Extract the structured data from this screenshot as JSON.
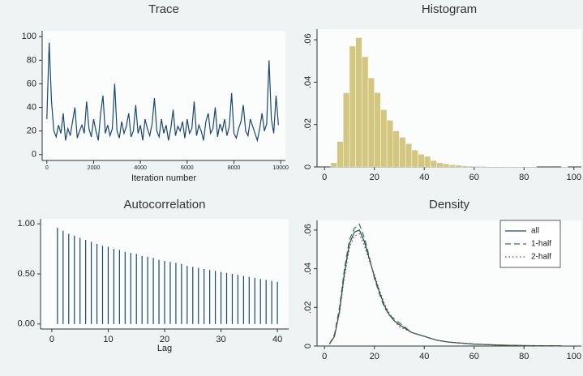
{
  "chart_data": [
    {
      "type": "line",
      "title": "Trace",
      "xlabel": "Iteration number",
      "x": [
        0,
        100,
        200,
        300,
        400,
        500,
        600,
        700,
        800,
        900,
        1000,
        1100,
        1200,
        1300,
        1400,
        1500,
        1600,
        1700,
        1800,
        1900,
        2000,
        2100,
        2200,
        2300,
        2400,
        2500,
        2600,
        2700,
        2800,
        2900,
        3000,
        3100,
        3200,
        3300,
        3400,
        3500,
        3600,
        3700,
        3800,
        3900,
        4000,
        4100,
        4200,
        4300,
        4400,
        4500,
        4600,
        4700,
        4800,
        4900,
        5000,
        5100,
        5200,
        5300,
        5400,
        5500,
        5600,
        5700,
        5800,
        5900,
        6000,
        6100,
        6200,
        6300,
        6400,
        6500,
        6600,
        6700,
        6800,
        6900,
        7000,
        7100,
        7200,
        7300,
        7400,
        7500,
        7600,
        7700,
        7800,
        7900,
        8000,
        8100,
        8200,
        8300,
        8400,
        8500,
        8600,
        8700,
        8800,
        8900,
        9000,
        9100,
        9200,
        9300,
        9400,
        9500,
        9600,
        9700,
        9800,
        9900
      ],
      "values": [
        30,
        95,
        45,
        20,
        15,
        25,
        18,
        35,
        12,
        22,
        16,
        28,
        40,
        14,
        20,
        25,
        18,
        45,
        22,
        15,
        30,
        20,
        12,
        35,
        50,
        18,
        25,
        16,
        22,
        60,
        20,
        14,
        28,
        18,
        24,
        35,
        15,
        20,
        42,
        18,
        25,
        12,
        30,
        22,
        16,
        26,
        48,
        20,
        15,
        30,
        18,
        25,
        12,
        22,
        38,
        16,
        24,
        20,
        28,
        14,
        30,
        18,
        22,
        45,
        16,
        25,
        20,
        12,
        28,
        35,
        18,
        22,
        40,
        15,
        26,
        20,
        30,
        16,
        24,
        52,
        18,
        14,
        22,
        28,
        42,
        20,
        16,
        30,
        24,
        18,
        12,
        22,
        35,
        20,
        26,
        80,
        30,
        18,
        50,
        25
      ],
      "color": "#1a476f",
      "xlim": [
        -200,
        10200
      ],
      "ylim": [
        -5,
        105
      ],
      "xticks": [
        0,
        2000,
        4000,
        6000,
        8000,
        10000
      ],
      "yticks": [
        0,
        20,
        40,
        60,
        80,
        100
      ],
      "ytick_rotation": 0,
      "xtick_size": "small"
    },
    {
      "type": "histogram",
      "title": "Histogram",
      "bins": [
        2.5,
        5,
        7.5,
        10,
        12.5,
        15,
        17.5,
        20,
        22.5,
        25,
        27.5,
        30,
        32.5,
        35,
        37.5,
        40,
        42.5,
        45,
        47.5,
        50,
        52.5,
        55,
        57.5,
        60,
        62.5,
        65,
        67.5,
        70,
        72.5,
        75,
        77.5,
        80,
        82.5,
        85,
        87.5,
        90,
        92.5,
        95,
        97.5
      ],
      "values": [
        0.002,
        0.012,
        0.035,
        0.057,
        0.061,
        0.052,
        0.042,
        0.035,
        0.027,
        0.022,
        0.017,
        0.014,
        0.011,
        0.008,
        0.006,
        0.005,
        0.003,
        0.002,
        0.0015,
        0.001,
        0.0008,
        0.0005,
        0.0004,
        0.0003,
        0.0003,
        0.0002,
        0.0002,
        0.0001,
        0.0001,
        0.0001,
        0.0001,
        0.0001,
        0.0001,
        0,
        0,
        0,
        0,
        0.0001
      ],
      "color": "#c9b85e",
      "xlim": [
        -3,
        103
      ],
      "ylim": [
        0,
        0.065
      ],
      "xticks": [
        0,
        20,
        40,
        60,
        80,
        100
      ],
      "yticks": [
        0,
        {
          "value": 0.02,
          "label": ".02"
        },
        {
          "value": 0.04,
          "label": ".04"
        },
        {
          "value": 0.06,
          "label": ".06"
        }
      ],
      "ytick_rotation": -90
    },
    {
      "type": "stem",
      "title": "Autocorrelation",
      "xlabel": "Lag",
      "x": [
        1,
        2,
        3,
        4,
        5,
        6,
        7,
        8,
        9,
        10,
        11,
        12,
        13,
        14,
        15,
        16,
        17,
        18,
        19,
        20,
        21,
        22,
        23,
        24,
        25,
        26,
        27,
        28,
        29,
        30,
        31,
        32,
        33,
        34,
        35,
        36,
        37,
        38,
        39,
        40
      ],
      "values": [
        0.96,
        0.93,
        0.9,
        0.88,
        0.86,
        0.84,
        0.82,
        0.8,
        0.78,
        0.77,
        0.75,
        0.74,
        0.72,
        0.71,
        0.7,
        0.68,
        0.67,
        0.66,
        0.64,
        0.63,
        0.62,
        0.61,
        0.6,
        0.58,
        0.57,
        0.56,
        0.55,
        0.54,
        0.53,
        0.52,
        0.51,
        0.5,
        0.49,
        0.48,
        0.47,
        0.46,
        0.45,
        0.44,
        0.43,
        0.42
      ],
      "color": "#1a476f",
      "xlim": [
        -2,
        42
      ],
      "ylim": [
        -0.05,
        1.05
      ],
      "xticks": [
        0,
        10,
        20,
        30,
        40
      ],
      "yticks": [
        {
          "value": 0,
          "label": "0.00"
        },
        {
          "value": 0.5,
          "label": "0.50"
        },
        {
          "value": 1,
          "label": "1.00"
        }
      ],
      "ytick_rotation": 0
    },
    {
      "type": "line",
      "title": "Density",
      "x": [
        2,
        4,
        6,
        8,
        10,
        12,
        14,
        16,
        18,
        20,
        22,
        24,
        26,
        28,
        30,
        35,
        40,
        45,
        50,
        55,
        60,
        70,
        80,
        95
      ],
      "series": [
        {
          "name": "all",
          "color": "#1a476f",
          "style": "solid",
          "values": [
            0.001,
            0.005,
            0.018,
            0.038,
            0.053,
            0.059,
            0.06,
            0.054,
            0.045,
            0.036,
            0.028,
            0.021,
            0.016,
            0.013,
            0.011,
            0.007,
            0.005,
            0.003,
            0.002,
            0.0015,
            0.001,
            0.0005,
            0.0002,
            0.0001
          ]
        },
        {
          "name": "1-half",
          "color": "#2f7d32",
          "style": "dashed",
          "values": [
            0.001,
            0.006,
            0.02,
            0.04,
            0.055,
            0.061,
            0.063,
            0.056,
            0.046,
            0.035,
            0.027,
            0.02,
            0.016,
            0.014,
            0.012,
            0.007,
            0.005,
            0.003,
            0.002,
            0.0014,
            0.001,
            0.0005,
            0.0002,
            0.0001
          ]
        },
        {
          "name": "2-half",
          "color": "#90353b",
          "style": "dotted",
          "values": [
            0.001,
            0.005,
            0.017,
            0.036,
            0.051,
            0.057,
            0.058,
            0.052,
            0.044,
            0.037,
            0.029,
            0.022,
            0.017,
            0.013,
            0.01,
            0.007,
            0.005,
            0.003,
            0.002,
            0.0016,
            0.001,
            0.0005,
            0.0002,
            0.0001
          ]
        }
      ],
      "legend": "top-right",
      "xlim": [
        -3,
        103
      ],
      "ylim": [
        0,
        0.065
      ],
      "xticks": [
        0,
        20,
        40,
        60,
        80,
        100
      ],
      "yticks": [
        0,
        {
          "value": 0.02,
          "label": ".02"
        },
        {
          "value": 0.04,
          "label": ".04"
        },
        {
          "value": 0.06,
          "label": ".06"
        }
      ],
      "ytick_rotation": -90
    }
  ]
}
